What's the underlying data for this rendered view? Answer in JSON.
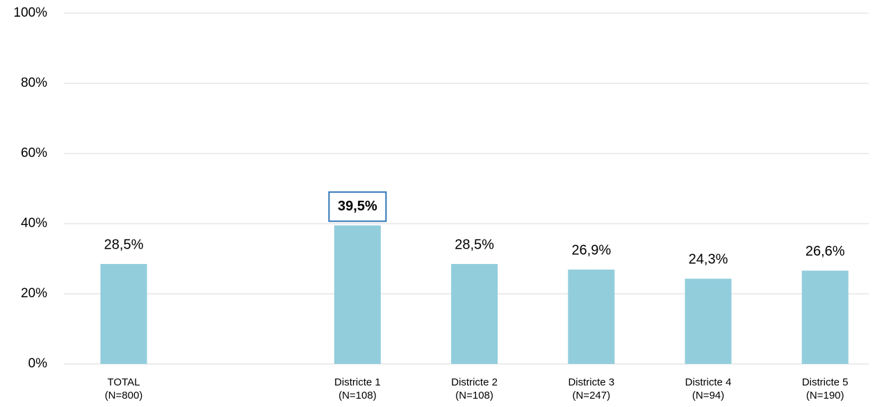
{
  "chart_data": {
    "type": "bar",
    "categories": [
      "TOTAL",
      null,
      "Districte 1",
      "Districte 2",
      "Districte 3",
      "Districte 4",
      "Districte 5"
    ],
    "category_notes": [
      "(N=800)",
      null,
      "(N=108)",
      "(N=108)",
      "(N=247)",
      "(N=94)",
      "(N=190)"
    ],
    "values": [
      28.5,
      null,
      39.5,
      28.5,
      26.9,
      24.3,
      26.6
    ],
    "value_labels": [
      "28,5%",
      null,
      "39,5%",
      "28,5%",
      "26,9%",
      "24,3%",
      "26,6%"
    ],
    "highlight_index": 2,
    "color": "#92cddc",
    "ylim": [
      0,
      100
    ],
    "yticks": [
      {
        "value": 0,
        "label": "0%"
      },
      {
        "value": 20,
        "label": "20%"
      },
      {
        "value": 40,
        "label": "40%"
      },
      {
        "value": 60,
        "label": "60%"
      },
      {
        "value": 80,
        "label": "80%"
      },
      {
        "value": 100,
        "label": "100%"
      }
    ],
    "grid": true
  }
}
